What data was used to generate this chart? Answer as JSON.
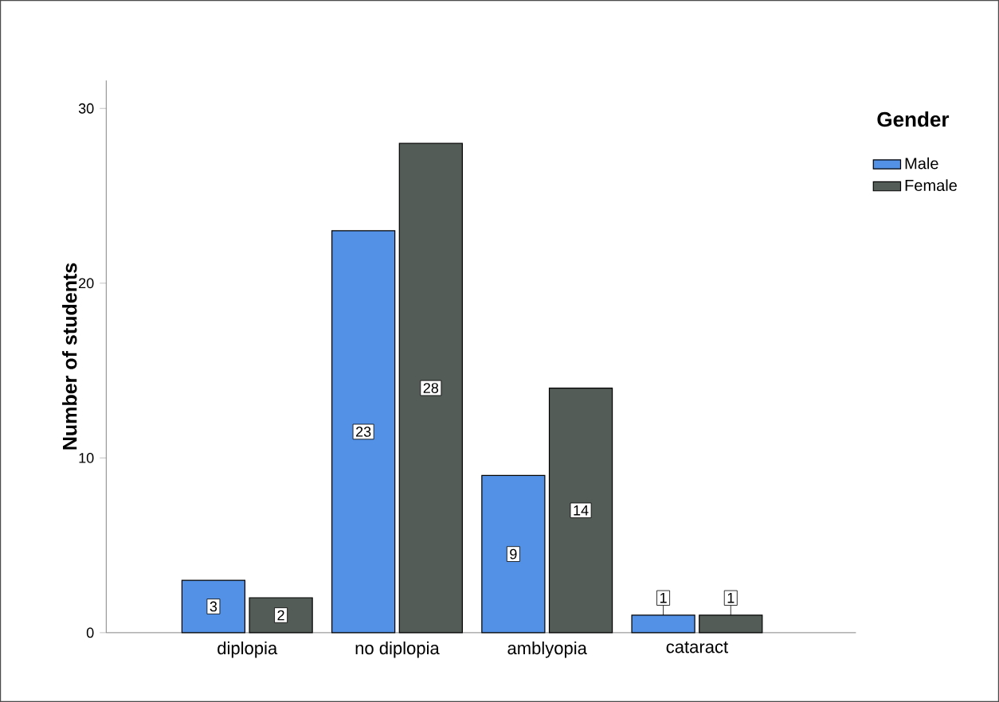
{
  "chart_data": {
    "type": "bar",
    "ylabel": "Number of students",
    "legend_title": "Gender",
    "categories": [
      "diplopia",
      "no diplopia",
      "amblyopia",
      "cataract"
    ],
    "series": [
      {
        "name": "Male",
        "color": "#5291e6",
        "values": [
          3,
          23,
          9,
          1
        ]
      },
      {
        "name": "Female",
        "color": "#535c57",
        "values": [
          2,
          28,
          14,
          1
        ]
      }
    ],
    "ylim": [
      0,
      31.6
    ],
    "yticks": [
      0,
      10,
      20,
      30
    ],
    "grid": false,
    "legend": "top right",
    "data_labels": true
  }
}
